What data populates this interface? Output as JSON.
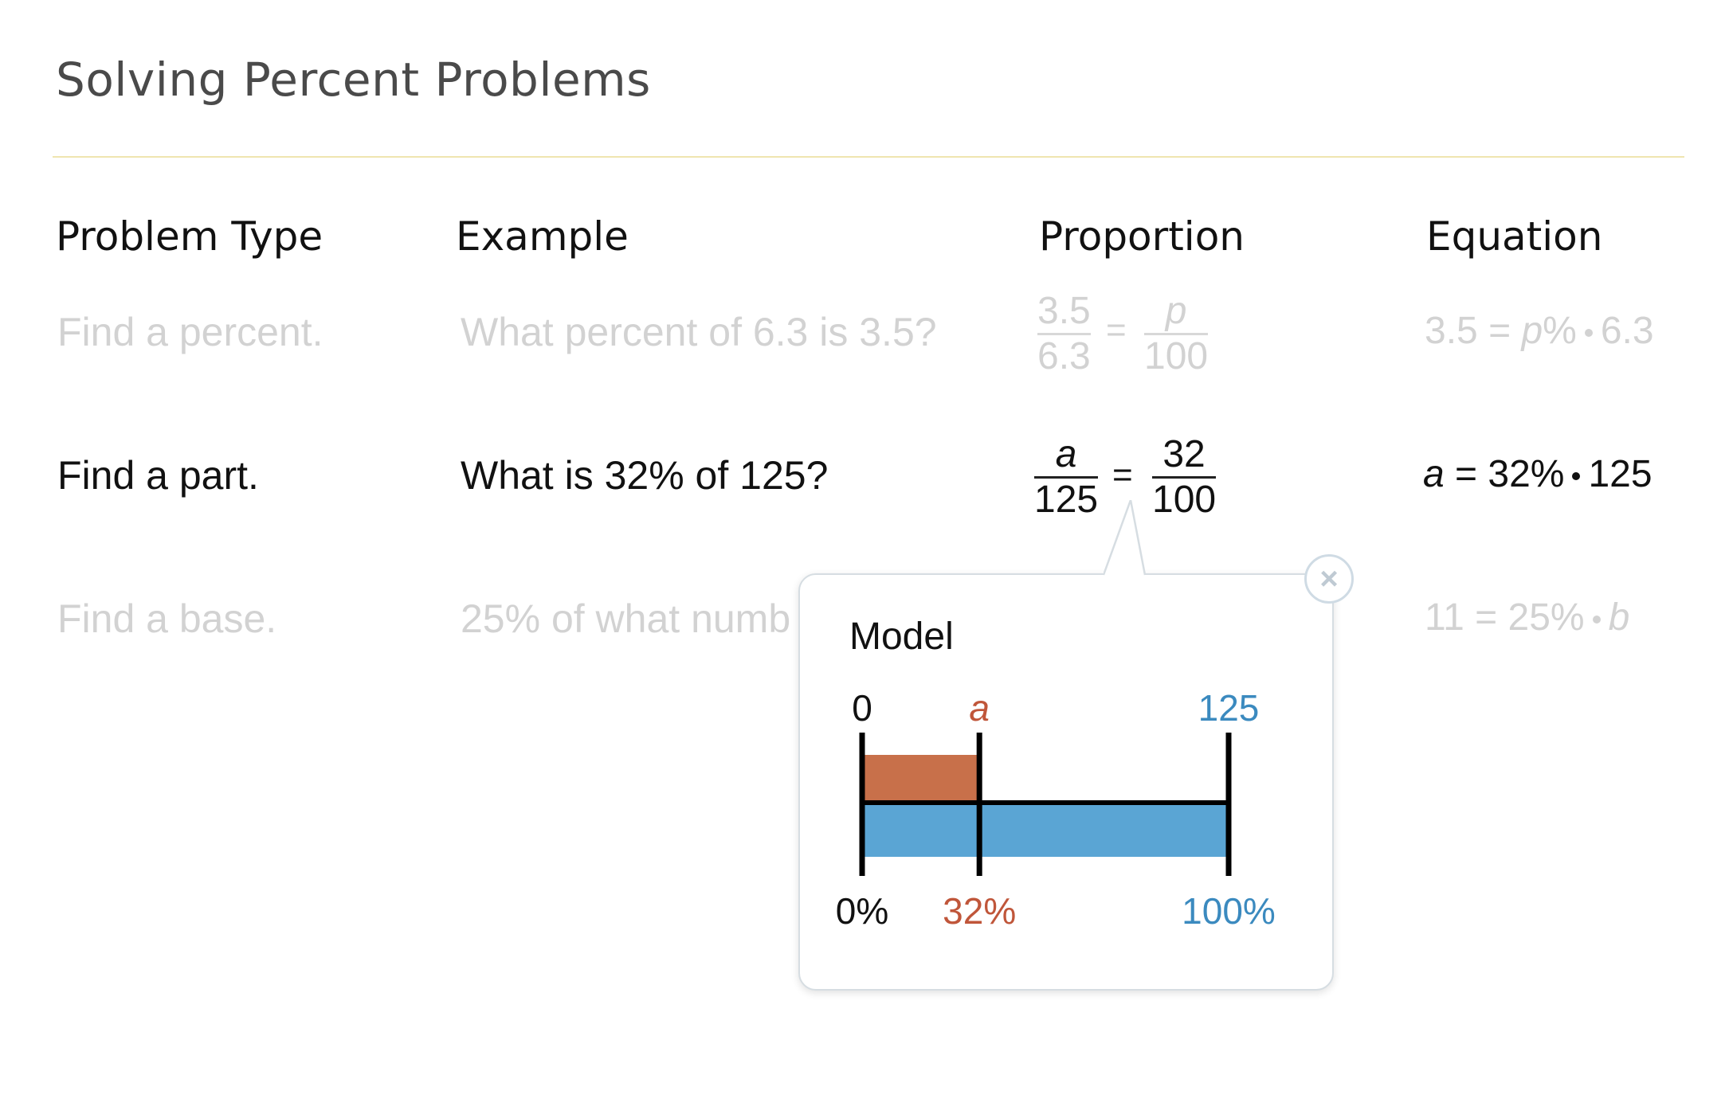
{
  "title": "Solving Percent Problems",
  "headers": [
    "Problem Type",
    "Example",
    "Proportion",
    "Equation"
  ],
  "rows": [
    {
      "type": "Find a percent.",
      "example": "What percent of 6.3 is 3.5?",
      "proportion": {
        "left_num": "3.5",
        "left_den": "6.3",
        "eq": "=",
        "right_num": "p",
        "right_den": "100"
      },
      "equation": {
        "lhs": "3.5 =",
        "var": "p",
        "mid": "%",
        "rhs": "6.3"
      },
      "active": false
    },
    {
      "type": "Find a part.",
      "example": "What is 32% of 125?",
      "proportion": {
        "left_num": "a",
        "left_den": "125",
        "eq": "=",
        "right_num": "32",
        "right_den": "100"
      },
      "equation": {
        "var": "a",
        "mid": "= 32%",
        "rhs": "125"
      },
      "active": true
    },
    {
      "type": "Find a base.",
      "example": "25% of what numb",
      "equation": {
        "lhs": "11 = 25%",
        "var": "b"
      },
      "active": false
    }
  ],
  "popup": {
    "title": "Model",
    "close_icon": "close-icon",
    "top_labels": [
      "0",
      "a",
      "125"
    ],
    "bottom_labels": [
      "0%",
      "32%",
      "100%"
    ],
    "part_fraction": 0.32,
    "colors": {
      "part": "#c8704a",
      "whole": "#5aa5d4",
      "part_text": "#c0563a",
      "whole_text": "#3b8abf"
    }
  }
}
